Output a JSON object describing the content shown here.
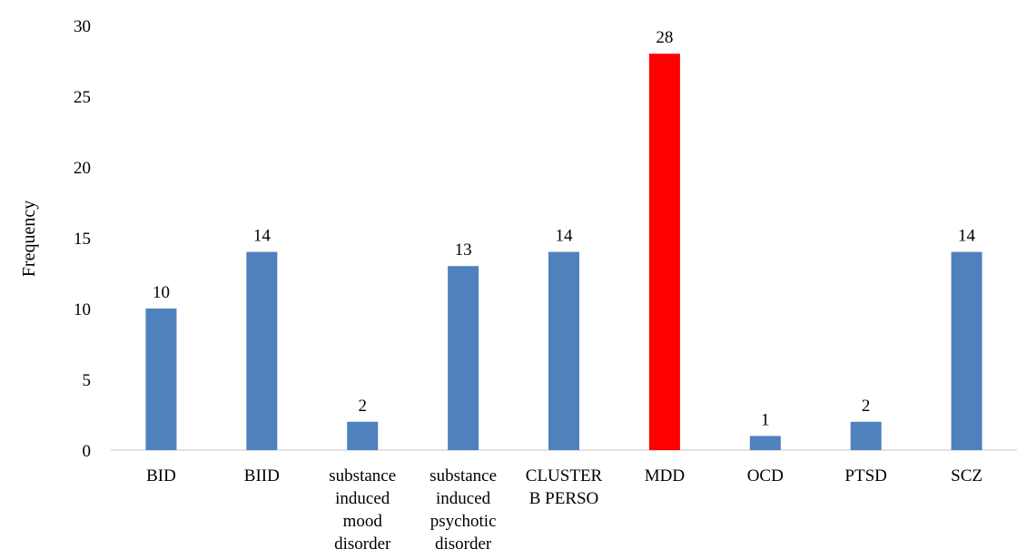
{
  "chart_data": {
    "type": "bar",
    "title": "",
    "xlabel": "",
    "ylabel": "Frequency",
    "ylim": [
      0,
      30
    ],
    "yticks": [
      0,
      5,
      10,
      15,
      20,
      25,
      30
    ],
    "grid": false,
    "categories": [
      [
        "BID"
      ],
      [
        "BIID"
      ],
      [
        "substance",
        "induced",
        "mood",
        "disorder"
      ],
      [
        "substance",
        "induced",
        "psychotic",
        "disorder"
      ],
      [
        "CLUSTER",
        "B PERSO"
      ],
      [
        "MDD"
      ],
      [
        "OCD"
      ],
      [
        "PTSD"
      ],
      [
        "SCZ"
      ]
    ],
    "values": [
      10,
      14,
      2,
      13,
      14,
      28,
      1,
      2,
      14
    ],
    "colors": [
      "#4f81bd",
      "#4f81bd",
      "#4f81bd",
      "#4f81bd",
      "#4f81bd",
      "#ff0000",
      "#4f81bd",
      "#4f81bd",
      "#4f81bd"
    ],
    "data_labels": [
      "10",
      "14",
      "2",
      "13",
      "14",
      "28",
      "1",
      "2",
      "14"
    ]
  }
}
